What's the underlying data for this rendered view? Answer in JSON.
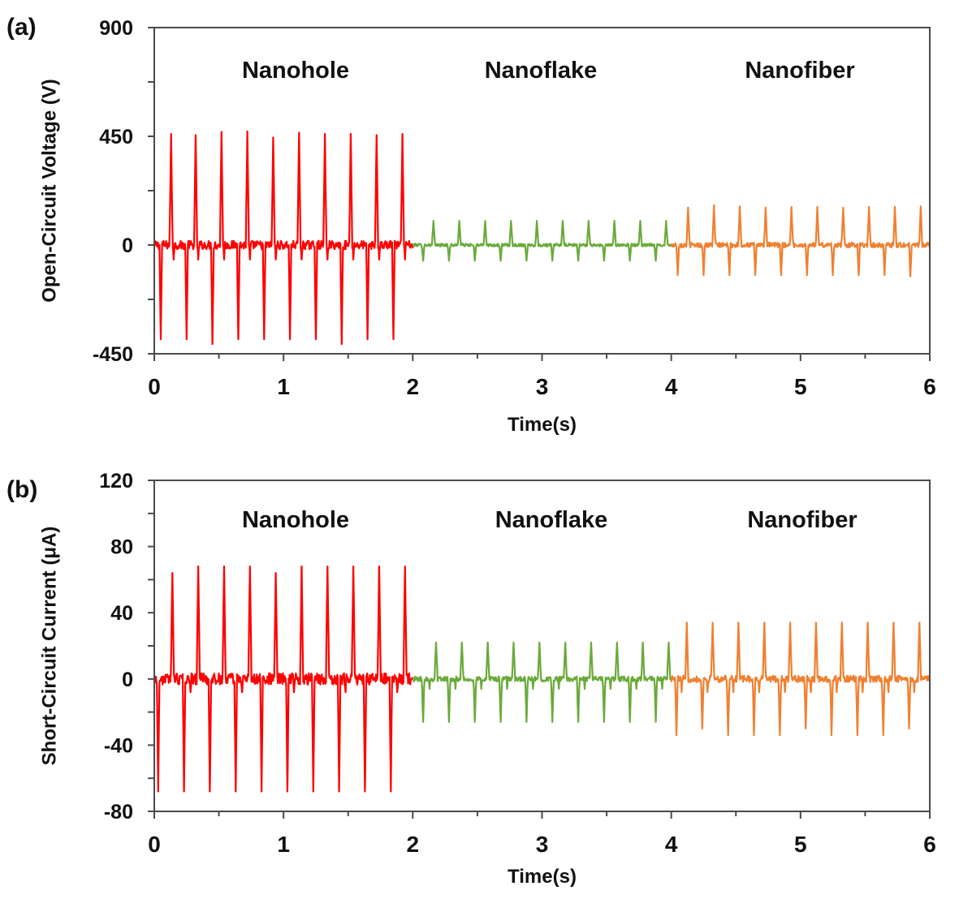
{
  "chart_data": [
    {
      "type": "line",
      "panel_label": "(a)",
      "title": "",
      "xlabel": "Time(s)",
      "ylabel": "Open-Circuit Voltage (V)",
      "xlim": [
        0,
        6
      ],
      "ylim": [
        -450,
        900
      ],
      "xticks": [
        0,
        1,
        2,
        3,
        4,
        5,
        6
      ],
      "xtick_labels": [
        "0",
        "1",
        "2",
        "3",
        "4",
        "5",
        "6"
      ],
      "yticks": [
        -450,
        0,
        450,
        900
      ],
      "ytick_labels": [
        "-450",
        "0",
        "450",
        "900"
      ],
      "y_minor_step": 225,
      "x_minor_step": 0.5,
      "grid": false,
      "legend": "none",
      "annotations": [
        "Nanohole",
        "Nanoflake",
        "Nanofiber"
      ],
      "series": [
        {
          "name": "Nanohole",
          "color": "#ff0000",
          "t_range": [
            0,
            2
          ],
          "noise": 18,
          "peaks_pos": [
            [
              0.13,
              460
            ],
            [
              0.32,
              455
            ],
            [
              0.52,
              468
            ],
            [
              0.72,
              470
            ],
            [
              0.92,
              445
            ],
            [
              1.12,
              465
            ],
            [
              1.32,
              460
            ],
            [
              1.52,
              460
            ],
            [
              1.72,
              455
            ],
            [
              1.92,
              460
            ]
          ],
          "peaks_neg": [
            [
              0.05,
              -390
            ],
            [
              0.25,
              -390
            ],
            [
              0.45,
              -410
            ],
            [
              0.65,
              -390
            ],
            [
              0.85,
              -390
            ],
            [
              1.05,
              -390
            ],
            [
              1.25,
              -390
            ],
            [
              1.45,
              -410
            ],
            [
              1.65,
              -390
            ],
            [
              1.85,
              -390
            ]
          ],
          "secondary_neg": [
            [
              0.15,
              -60
            ],
            [
              0.34,
              -60
            ],
            [
              0.54,
              -60
            ],
            [
              0.74,
              -60
            ],
            [
              0.94,
              -60
            ],
            [
              1.14,
              -60
            ],
            [
              1.34,
              -60
            ],
            [
              1.54,
              -60
            ],
            [
              1.74,
              -60
            ],
            [
              1.94,
              -60
            ]
          ]
        },
        {
          "name": "Nanoflake",
          "color": "#6aaa3a",
          "t_range": [
            2,
            4
          ],
          "noise": 6,
          "peaks_pos": [
            [
              2.16,
              100
            ],
            [
              2.36,
              100
            ],
            [
              2.56,
              100
            ],
            [
              2.76,
              100
            ],
            [
              2.96,
              100
            ],
            [
              3.16,
              100
            ],
            [
              3.36,
              100
            ],
            [
              3.56,
              100
            ],
            [
              3.76,
              100
            ],
            [
              3.96,
              100
            ]
          ],
          "peaks_neg": [
            [
              2.08,
              -65
            ],
            [
              2.28,
              -65
            ],
            [
              2.48,
              -65
            ],
            [
              2.68,
              -65
            ],
            [
              2.88,
              -65
            ],
            [
              3.08,
              -65
            ],
            [
              3.28,
              -65
            ],
            [
              3.48,
              -65
            ],
            [
              3.68,
              -65
            ],
            [
              3.88,
              -65
            ]
          ],
          "secondary_neg": []
        },
        {
          "name": "Nanofiber",
          "color": "#f08030",
          "t_range": [
            4,
            6
          ],
          "noise": 10,
          "peaks_pos": [
            [
              4.13,
              155
            ],
            [
              4.33,
              165
            ],
            [
              4.53,
              160
            ],
            [
              4.73,
              155
            ],
            [
              4.93,
              158
            ],
            [
              5.13,
              158
            ],
            [
              5.33,
              155
            ],
            [
              5.53,
              158
            ],
            [
              5.73,
              158
            ],
            [
              5.93,
              160
            ]
          ],
          "peaks_neg": [
            [
              4.05,
              -125
            ],
            [
              4.25,
              -125
            ],
            [
              4.45,
              -125
            ],
            [
              4.65,
              -125
            ],
            [
              4.85,
              -125
            ],
            [
              5.05,
              -125
            ],
            [
              5.25,
              -125
            ],
            [
              5.45,
              -125
            ],
            [
              5.65,
              -125
            ],
            [
              5.85,
              -130
            ]
          ],
          "secondary_neg": []
        }
      ]
    },
    {
      "type": "line",
      "panel_label": "(b)",
      "title": "",
      "xlabel": "Time(s)",
      "ylabel": "Short-Circuit Current (μA)",
      "xlim": [
        0,
        6
      ],
      "ylim": [
        -80,
        120
      ],
      "xticks": [
        0,
        1,
        2,
        3,
        4,
        5,
        6
      ],
      "xtick_labels": [
        "0",
        "1",
        "2",
        "3",
        "4",
        "5",
        "6"
      ],
      "yticks": [
        -80,
        -40,
        0,
        40,
        80,
        120
      ],
      "ytick_labels": [
        "-80",
        "-40",
        "0",
        "40",
        "80",
        "120"
      ],
      "y_minor_step": 20,
      "x_minor_step": 0.5,
      "grid": false,
      "legend": "none",
      "annotations": [
        "Nanohole",
        "Nanoflake",
        "Nanofiber"
      ],
      "series": [
        {
          "name": "Nanohole",
          "color": "#ff0000",
          "t_range": [
            0,
            2
          ],
          "noise": 3.5,
          "peaks_pos": [
            [
              0.14,
              64
            ],
            [
              0.34,
              68
            ],
            [
              0.54,
              68
            ],
            [
              0.74,
              68
            ],
            [
              0.94,
              64
            ],
            [
              1.14,
              68
            ],
            [
              1.34,
              68
            ],
            [
              1.54,
              68
            ],
            [
              1.74,
              68
            ],
            [
              1.94,
              68
            ]
          ],
          "peaks_neg": [
            [
              0.03,
              -68
            ],
            [
              0.23,
              -68
            ],
            [
              0.43,
              -68
            ],
            [
              0.63,
              -68
            ],
            [
              0.83,
              -68
            ],
            [
              1.03,
              -68
            ],
            [
              1.23,
              -68
            ],
            [
              1.43,
              -68
            ],
            [
              1.63,
              -68
            ],
            [
              1.83,
              -68
            ]
          ],
          "secondary_neg": [
            [
              0.28,
              -8
            ],
            [
              0.68,
              -8
            ],
            [
              1.08,
              -8
            ],
            [
              1.48,
              -8
            ],
            [
              1.88,
              -8
            ]
          ]
        },
        {
          "name": "Nanoflake",
          "color": "#6aaa3a",
          "t_range": [
            2,
            4
          ],
          "noise": 1.5,
          "peaks_pos": [
            [
              2.18,
              22
            ],
            [
              2.38,
              22
            ],
            [
              2.58,
              22
            ],
            [
              2.78,
              22
            ],
            [
              2.98,
              22
            ],
            [
              3.18,
              22
            ],
            [
              3.38,
              22
            ],
            [
              3.58,
              22
            ],
            [
              3.78,
              22
            ],
            [
              3.98,
              22
            ]
          ],
          "peaks_neg": [
            [
              2.08,
              -26
            ],
            [
              2.28,
              -26
            ],
            [
              2.48,
              -26
            ],
            [
              2.68,
              -26
            ],
            [
              2.88,
              -26
            ],
            [
              3.08,
              -26
            ],
            [
              3.28,
              -26
            ],
            [
              3.48,
              -26
            ],
            [
              3.68,
              -26
            ],
            [
              3.88,
              -26
            ]
          ],
          "secondary_neg": [
            [
              2.13,
              -6
            ],
            [
              2.33,
              -6
            ],
            [
              2.53,
              -6
            ],
            [
              2.73,
              -6
            ],
            [
              2.93,
              -6
            ],
            [
              3.13,
              -6
            ],
            [
              3.33,
              -6
            ],
            [
              3.53,
              -6
            ],
            [
              3.73,
              -6
            ],
            [
              3.93,
              -6
            ]
          ]
        },
        {
          "name": "Nanofiber",
          "color": "#f08030",
          "t_range": [
            4,
            6
          ],
          "noise": 2,
          "peaks_pos": [
            [
              4.12,
              34
            ],
            [
              4.32,
              34
            ],
            [
              4.52,
              34
            ],
            [
              4.72,
              34
            ],
            [
              4.92,
              34
            ],
            [
              5.12,
              34
            ],
            [
              5.32,
              34
            ],
            [
              5.52,
              34
            ],
            [
              5.72,
              34
            ],
            [
              5.92,
              34
            ]
          ],
          "peaks_neg": [
            [
              4.04,
              -34
            ],
            [
              4.24,
              -30
            ],
            [
              4.44,
              -34
            ],
            [
              4.64,
              -34
            ],
            [
              4.84,
              -34
            ],
            [
              5.04,
              -30
            ],
            [
              5.24,
              -34
            ],
            [
              5.44,
              -34
            ],
            [
              5.64,
              -34
            ],
            [
              5.84,
              -30
            ]
          ],
          "secondary_neg": [
            [
              4.08,
              -8
            ],
            [
              4.28,
              -8
            ],
            [
              4.48,
              -8
            ],
            [
              4.68,
              -8
            ],
            [
              4.88,
              -8
            ],
            [
              5.08,
              -8
            ],
            [
              5.28,
              -8
            ],
            [
              5.48,
              -8
            ],
            [
              5.68,
              -8
            ],
            [
              5.88,
              -8
            ]
          ]
        }
      ]
    }
  ]
}
